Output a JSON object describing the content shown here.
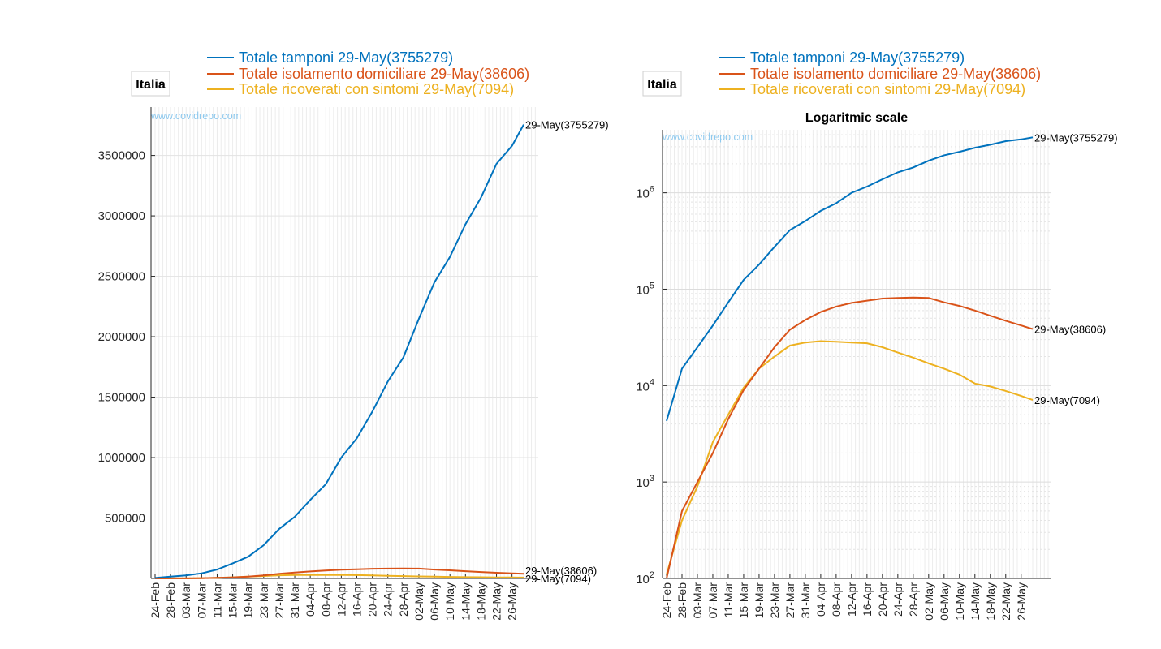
{
  "chart_data": [
    {
      "type": "line",
      "region_label": "Italia",
      "title": "",
      "watermark": "www.covidrepo.com",
      "yscale": "linear",
      "ylim": [
        0,
        3900000
      ],
      "y_ticks": [
        500000,
        1000000,
        1500000,
        2000000,
        2500000,
        3000000,
        3500000
      ],
      "y_tick_labels": [
        "500000",
        "1000000",
        "1500000",
        "2000000",
        "2500000",
        "3000000",
        "3500000"
      ],
      "x_tick_labels": [
        "24-Feb",
        "28-Feb",
        "03-Mar",
        "07-Mar",
        "11-Mar",
        "15-Mar",
        "19-Mar",
        "23-Mar",
        "27-Mar",
        "31-Mar",
        "04-Apr",
        "08-Apr",
        "12-Apr",
        "16-Apr",
        "20-Apr",
        "24-Apr",
        "28-Apr",
        "02-May",
        "06-May",
        "10-May",
        "14-May",
        "18-May",
        "22-May",
        "26-May"
      ],
      "grid": true,
      "legend_position": "top",
      "series": [
        {
          "name": "Totale tamponi 29-May(3755279)",
          "end_label": "29-May(3755279)",
          "color": "#0072bd",
          "x": [
            "24-Feb",
            "28-Feb",
            "03-Mar",
            "07-Mar",
            "11-Mar",
            "15-Mar",
            "19-Mar",
            "23-Mar",
            "27-Mar",
            "31-Mar",
            "04-Apr",
            "08-Apr",
            "12-Apr",
            "16-Apr",
            "20-Apr",
            "24-Apr",
            "28-Apr",
            "02-May",
            "06-May",
            "10-May",
            "14-May",
            "18-May",
            "22-May",
            "26-May",
            "29-May"
          ],
          "values": [
            4300,
            15000,
            25000,
            42000,
            73000,
            125000,
            180000,
            275000,
            410000,
            510000,
            650000,
            780000,
            1000000,
            1160000,
            1380000,
            1630000,
            1830000,
            2150000,
            2450000,
            2660000,
            2930000,
            3150000,
            3430000,
            3580000,
            3755279
          ]
        },
        {
          "name": "Totale isolamento domiciliare 29-May(38606)",
          "end_label": "29-May(38606)",
          "color": "#d95319",
          "x": [
            "24-Feb",
            "28-Feb",
            "03-Mar",
            "07-Mar",
            "11-Mar",
            "15-Mar",
            "19-Mar",
            "23-Mar",
            "27-Mar",
            "31-Mar",
            "04-Apr",
            "08-Apr",
            "12-Apr",
            "16-Apr",
            "20-Apr",
            "24-Apr",
            "28-Apr",
            "02-May",
            "06-May",
            "10-May",
            "14-May",
            "18-May",
            "22-May",
            "26-May",
            "29-May"
          ],
          "values": [
            100,
            500,
            1000,
            2000,
            4500,
            9000,
            15000,
            25000,
            38000,
            48000,
            58000,
            66000,
            72000,
            76000,
            80000,
            81000,
            82000,
            81000,
            73000,
            67000,
            60000,
            53000,
            47000,
            42000,
            38606
          ]
        },
        {
          "name": "Totale ricoverati con sintomi 29-May(7094)",
          "end_label": "29-May(7094)",
          "color": "#edb120",
          "x": [
            "24-Feb",
            "28-Feb",
            "03-Mar",
            "07-Mar",
            "11-Mar",
            "15-Mar",
            "19-Mar",
            "23-Mar",
            "27-Mar",
            "31-Mar",
            "04-Apr",
            "08-Apr",
            "12-Apr",
            "16-Apr",
            "20-Apr",
            "24-Apr",
            "28-Apr",
            "02-May",
            "06-May",
            "10-May",
            "14-May",
            "18-May",
            "22-May",
            "26-May",
            "29-May"
          ],
          "values": [
            110,
            400,
            900,
            2600,
            5000,
            9500,
            15000,
            20000,
            26000,
            28000,
            28900,
            28500,
            28000,
            27500,
            25000,
            22000,
            19500,
            17000,
            15000,
            13000,
            10500,
            9800,
            8800,
            7800,
            7094
          ]
        }
      ]
    },
    {
      "type": "line",
      "region_label": "Italia",
      "title": "Logaritmic scale",
      "watermark": "www.covidrepo.com",
      "yscale": "log",
      "ylim": [
        100,
        4500000
      ],
      "y_ticks": [
        100,
        1000,
        10000,
        100000,
        1000000
      ],
      "y_tick_labels": [
        "10",
        "10",
        "10",
        "10",
        "10"
      ],
      "y_tick_exponents": [
        "2",
        "3",
        "4",
        "5",
        "6"
      ],
      "x_tick_labels": [
        "24-Feb",
        "28-Feb",
        "03-Mar",
        "07-Mar",
        "11-Mar",
        "15-Mar",
        "19-Mar",
        "23-Mar",
        "27-Mar",
        "31-Mar",
        "04-Apr",
        "08-Apr",
        "12-Apr",
        "16-Apr",
        "20-Apr",
        "24-Apr",
        "28-Apr",
        "02-May",
        "06-May",
        "10-May",
        "14-May",
        "18-May",
        "22-May",
        "26-May"
      ],
      "grid": true,
      "legend_position": "top",
      "series": [
        {
          "name": "Totale tamponi 29-May(3755279)",
          "end_label": "29-May(3755279)",
          "color": "#0072bd",
          "x": [
            "24-Feb",
            "28-Feb",
            "03-Mar",
            "07-Mar",
            "11-Mar",
            "15-Mar",
            "19-Mar",
            "23-Mar",
            "27-Mar",
            "31-Mar",
            "04-Apr",
            "08-Apr",
            "12-Apr",
            "16-Apr",
            "20-Apr",
            "24-Apr",
            "28-Apr",
            "02-May",
            "06-May",
            "10-May",
            "14-May",
            "18-May",
            "22-May",
            "26-May",
            "29-May"
          ],
          "values": [
            4300,
            15000,
            25000,
            42000,
            73000,
            125000,
            180000,
            275000,
            410000,
            510000,
            650000,
            780000,
            1000000,
            1160000,
            1380000,
            1630000,
            1830000,
            2150000,
            2450000,
            2660000,
            2930000,
            3150000,
            3430000,
            3580000,
            3755279
          ]
        },
        {
          "name": "Totale isolamento domiciliare 29-May(38606)",
          "end_label": "29-May(38606)",
          "color": "#d95319",
          "x": [
            "24-Feb",
            "28-Feb",
            "03-Mar",
            "07-Mar",
            "11-Mar",
            "15-Mar",
            "19-Mar",
            "23-Mar",
            "27-Mar",
            "31-Mar",
            "04-Apr",
            "08-Apr",
            "12-Apr",
            "16-Apr",
            "20-Apr",
            "24-Apr",
            "28-Apr",
            "02-May",
            "06-May",
            "10-May",
            "14-May",
            "18-May",
            "22-May",
            "26-May",
            "29-May"
          ],
          "values": [
            100,
            500,
            1000,
            2000,
            4500,
            9000,
            15000,
            25000,
            38000,
            48000,
            58000,
            66000,
            72000,
            76000,
            80000,
            81000,
            82000,
            81000,
            73000,
            67000,
            60000,
            53000,
            47000,
            42000,
            38606
          ]
        },
        {
          "name": "Totale ricoverati con sintomi 29-May(7094)",
          "end_label": "29-May(7094)",
          "color": "#edb120",
          "x": [
            "24-Feb",
            "28-Feb",
            "03-Mar",
            "07-Mar",
            "11-Mar",
            "15-Mar",
            "19-Mar",
            "23-Mar",
            "27-Mar",
            "31-Mar",
            "04-Apr",
            "08-Apr",
            "12-Apr",
            "16-Apr",
            "20-Apr",
            "24-Apr",
            "28-Apr",
            "02-May",
            "06-May",
            "10-May",
            "14-May",
            "18-May",
            "22-May",
            "26-May",
            "29-May"
          ],
          "values": [
            110,
            400,
            900,
            2600,
            5000,
            9500,
            15000,
            20000,
            26000,
            28000,
            28900,
            28500,
            28000,
            27500,
            25000,
            22000,
            19500,
            17000,
            15000,
            13000,
            10500,
            9800,
            8800,
            7800,
            7094
          ]
        }
      ]
    }
  ]
}
